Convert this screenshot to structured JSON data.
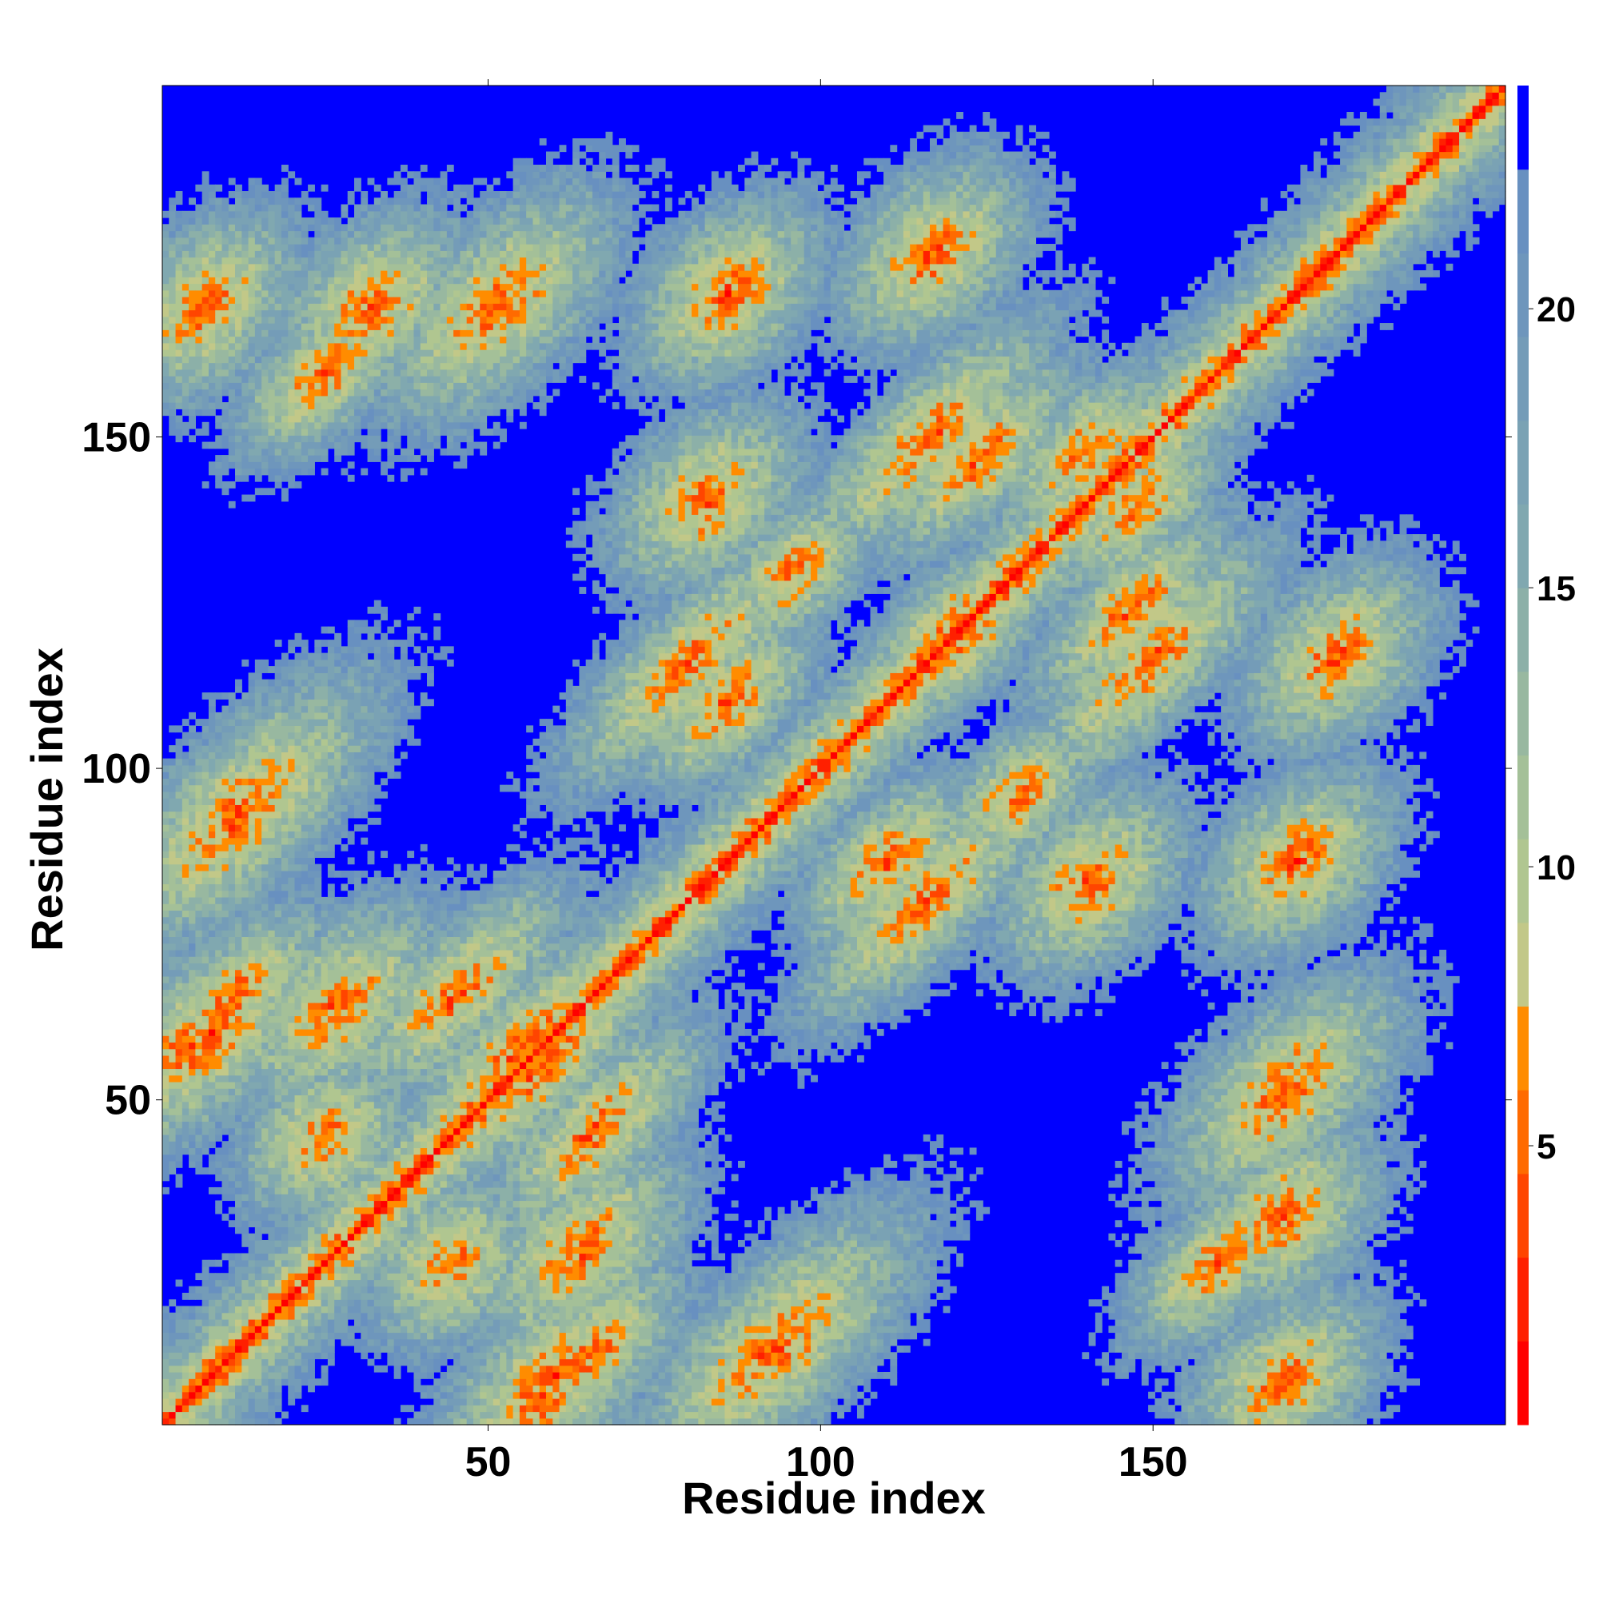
{
  "chart_data": {
    "type": "heatmap",
    "title": "",
    "xlabel": "Residue index",
    "ylabel": "Residue index",
    "n_residues": 203,
    "xlim": [
      1,
      203
    ],
    "ylim": [
      1,
      203
    ],
    "xticks": [
      50,
      100,
      150
    ],
    "xtick_labels": [
      "50",
      "100",
      "150"
    ],
    "yticks": [
      50,
      100,
      150
    ],
    "ytick_labels": [
      "50",
      "100",
      "150"
    ],
    "colorbar": {
      "range": [
        0,
        24
      ],
      "ticks": [
        5,
        10,
        15,
        20
      ],
      "tick_labels": [
        "5",
        "10",
        "15",
        "20"
      ],
      "levels": [
        {
          "from": 0,
          "to": 1.5,
          "color": "#ff0000"
        },
        {
          "from": 1.5,
          "to": 3,
          "color": "#ff2000"
        },
        {
          "from": 3,
          "to": 4.5,
          "color": "#ff4500"
        },
        {
          "from": 4.5,
          "to": 6,
          "color": "#ff6a00"
        },
        {
          "from": 6,
          "to": 7.5,
          "color": "#ff8c00"
        },
        {
          "from": 7.5,
          "to": 9,
          "color": "#c2c888"
        },
        {
          "from": 9,
          "to": 10.5,
          "color": "#b0c690"
        },
        {
          "from": 10.5,
          "to": 12,
          "color": "#a4c098"
        },
        {
          "from": 12,
          "to": 13.5,
          "color": "#98b8a0"
        },
        {
          "from": 13.5,
          "to": 15,
          "color": "#8cb0a8"
        },
        {
          "from": 15,
          "to": 16.5,
          "color": "#80a8b0"
        },
        {
          "from": 16.5,
          "to": 18,
          "color": "#7aa2b4"
        },
        {
          "from": 18,
          "to": 19.5,
          "color": "#749cb8"
        },
        {
          "from": 19.5,
          "to": 21,
          "color": "#6e96bc"
        },
        {
          "from": 21,
          "to": 22.5,
          "color": "#6890c0"
        },
        {
          "from": 22.5,
          "to": 24,
          "color": "#0000ff"
        }
      ]
    },
    "background_color": "#0000ff",
    "description_of_features": {
      "diagonal": [
        {
          "from": 1,
          "to": 203
        }
      ],
      "contact_lobes": [
        {
          "i": 4,
          "j": 57,
          "hw": 4,
          "len": 6
        },
        {
          "i": 12,
          "j": 66,
          "hw": 3,
          "len": 6
        },
        {
          "i": 27,
          "j": 64,
          "hw": 4,
          "len": 7
        },
        {
          "i": 44,
          "j": 25,
          "hw": 4,
          "len": 5
        },
        {
          "i": 60,
          "j": 8,
          "hw": 4,
          "len": 8
        },
        {
          "i": 45,
          "j": 66,
          "hw": 3,
          "len": 8
        },
        {
          "i": 58,
          "j": 55,
          "hw": 3,
          "len": 10
        },
        {
          "i": 93,
          "j": 12,
          "hw": 4,
          "len": 10
        },
        {
          "i": 116,
          "j": 80,
          "hw": 3,
          "len": 9
        },
        {
          "i": 120,
          "j": 121,
          "hw": 3,
          "len": 7
        },
        {
          "i": 124,
          "j": 147,
          "hw": 3,
          "len": 7
        },
        {
          "i": 150,
          "j": 116,
          "hw": 3,
          "len": 9
        },
        {
          "i": 110,
          "j": 86,
          "hw": 3,
          "len": 6
        },
        {
          "i": 130,
          "j": 96,
          "hw": 3,
          "len": 5
        },
        {
          "i": 170,
          "j": 51,
          "hw": 4,
          "len": 8
        },
        {
          "i": 170,
          "j": 7,
          "hw": 4,
          "len": 6
        },
        {
          "i": 170,
          "j": 32,
          "hw": 4,
          "len": 6
        },
        {
          "i": 160,
          "j": 25,
          "hw": 3,
          "len": 6
        },
        {
          "i": 178,
          "j": 117,
          "hw": 4,
          "len": 6
        },
        {
          "i": 172,
          "j": 86,
          "hw": 4,
          "len": 6
        },
        {
          "i": 83,
          "j": 141,
          "hw": 4,
          "len": 6
        },
        {
          "i": 148,
          "j": 140,
          "hw": 3,
          "len": 6
        }
      ]
    }
  }
}
